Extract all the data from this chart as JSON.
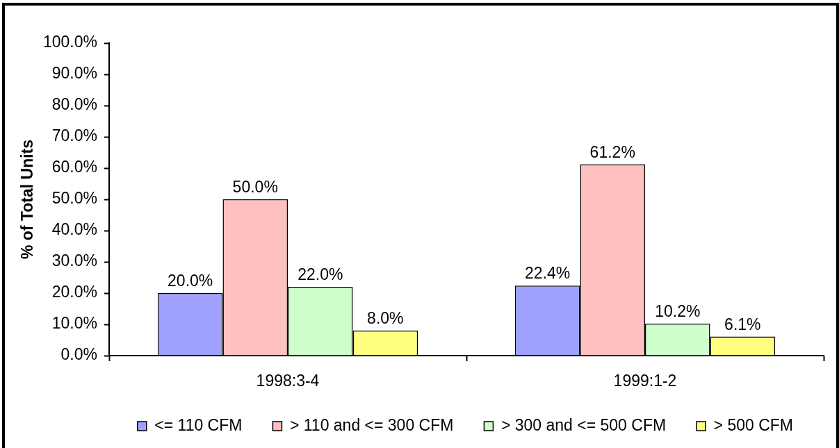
{
  "chart_data": {
    "type": "bar",
    "ylabel": "% of Total Units",
    "categories": [
      "1998:3-4",
      "1999:1-2"
    ],
    "series": [
      {
        "name": "<= 110 CFM",
        "color": "#a0a0ff",
        "values": [
          20.0,
          22.4
        ],
        "value_labels": [
          "20.0%",
          "22.4%"
        ]
      },
      {
        "name": "> 110 and <= 300 CFM",
        "color": "#ffc0c0",
        "values": [
          50.0,
          61.2
        ],
        "value_labels": [
          "50.0%",
          "61.2%"
        ]
      },
      {
        "name": "> 300 and <= 500 CFM",
        "color": "#ccffcc",
        "values": [
          22.0,
          10.2
        ],
        "value_labels": [
          "22.0%",
          "10.2%"
        ]
      },
      {
        "name": "> 500 CFM",
        "color": "#ffff80",
        "values": [
          8.0,
          6.1
        ],
        "value_labels": [
          "8.0%",
          "6.1%"
        ]
      }
    ],
    "ylim": [
      0,
      100
    ],
    "yticks": [
      {
        "value": 0,
        "label": "0.0%"
      },
      {
        "value": 10,
        "label": "10.0%"
      },
      {
        "value": 20,
        "label": "20.0%"
      },
      {
        "value": 30,
        "label": "30.0%"
      },
      {
        "value": 40,
        "label": "40.0%"
      },
      {
        "value": 50,
        "label": "50.0%"
      },
      {
        "value": 60,
        "label": "60.0%"
      },
      {
        "value": 70,
        "label": "70.0%"
      },
      {
        "value": 80,
        "label": "80.0%"
      },
      {
        "value": 90,
        "label": "90.0%"
      },
      {
        "value": 100,
        "label": "100.0%"
      }
    ],
    "legend": "bottom"
  }
}
